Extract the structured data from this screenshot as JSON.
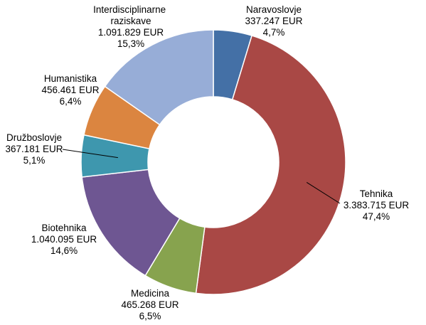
{
  "chart_data": {
    "type": "donut",
    "title": "",
    "unit": "EUR",
    "slices": [
      {
        "name": "Naravoslovje",
        "amount": "337.247 EUR",
        "percent_label": "4,7%",
        "value": 4.7,
        "color": "#4470A6"
      },
      {
        "name": "Tehnika",
        "amount": "3.383.715 EUR",
        "percent_label": "47,4%",
        "value": 47.4,
        "color": "#A94845"
      },
      {
        "name": "Medicina",
        "amount": "465.268 EUR",
        "percent_label": "6,5%",
        "value": 6.5,
        "color": "#87A34E"
      },
      {
        "name": "Biotehnika",
        "amount": "1.040.095 EUR",
        "percent_label": "14,6%",
        "value": 14.6,
        "color": "#6E5692"
      },
      {
        "name": "Družboslovje",
        "amount": "367.181 EUR",
        "percent_label": "5,1%",
        "value": 5.1,
        "color": "#3E97AE"
      },
      {
        "name": "Humanistika",
        "amount": "456.461 EUR",
        "percent_label": "6,4%",
        "value": 6.4,
        "color": "#DB8540"
      },
      {
        "name": "Interdisciplinarne raziskave",
        "amount": "1.091.829 EUR",
        "percent_label": "15,3%",
        "value": 15.3,
        "color": "#97ADD7"
      }
    ]
  }
}
